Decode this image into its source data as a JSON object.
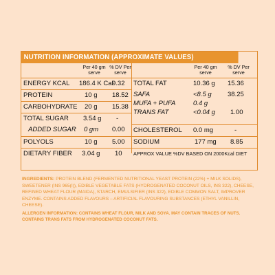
{
  "panel": {
    "title": "NUTRITION INFORMATION (APPROXIMATE VALUES)",
    "left_header": {
      "per_line1": "Per 40 gm",
      "per_line2": "serve",
      "dv_line1": "% DV Per",
      "dv_line2": "serve"
    },
    "right_header": {
      "per_line1": "Per 40 gm",
      "per_line2": "serve",
      "dv_line1": "% DV Per",
      "dv_line2": "serve"
    },
    "left_rows": [
      {
        "label": "ENERGY KCAL",
        "value": "186.4 K Cal",
        "dv": "9.32"
      },
      {
        "label": "PROTEIN",
        "value": "10 g",
        "dv": "18.52"
      },
      {
        "label": "CARBOHYDRATE",
        "value": "20 g",
        "dv": "15.38"
      },
      {
        "label": "TOTAL SUGAR",
        "value": "3.54 g",
        "dv": "-"
      },
      {
        "label": "ADDED SUGAR",
        "value": "0 gm",
        "dv": "0.00"
      },
      {
        "label": "POLYOLS",
        "value": "10 g",
        "dv": "5.00"
      },
      {
        "label": "DIETARY FIBER",
        "value": "3.04 g",
        "dv": "10"
      }
    ],
    "right_rows": [
      {
        "label": "TOTAL FAT",
        "value": "10.36 g",
        "dv": "15.36"
      },
      {
        "label": "SAFA",
        "value": "<8.5 g",
        "dv": "38.25"
      },
      {
        "label": "MUFA + PUFA",
        "value": "0.4 g",
        "dv": ""
      },
      {
        "label": "TRANS FAT",
        "value": "<0.04 g",
        "dv": "1.00"
      },
      {
        "label": "CHOLESTEROL",
        "value": "0.0 mg",
        "dv": "-"
      },
      {
        "label": "SODIUM",
        "value": "177 mg",
        "dv": "8.85"
      }
    ],
    "footnote": "APPROX VALUE %DV BASED ON 2000Kcal DIET"
  },
  "ingredients": {
    "heading": "INGREDIENTS:",
    "text": "PROTEIN BLEND (FERMENTED NUTRITIONAL YEAST PROTEIN (22%) + MILK SOLIDS), SWEETENER (INS 965(I)), EDIBLE VEGETABLE FATS (HYDROGENATED COCONUT OILS, INS 322), CHEESE, REFINED WHEAT FLOUR (MAIDA), STARCH, EMULSIFIER (INS 322), EDIBLE COMMON SALT, IMPROVER ENZYME. CONTAINS ADDED FLAVOURS – ARTIFICIAL FLAVOURING SUBSTANCES (ETHYL VANILLIN, CHEESE)."
  },
  "allergen": {
    "text": "ALLERGEN INFORMATION: CONTAINS WHEAT FLOUR, MILK AND SOYA. MAY CONTAIN TRACES OF NUTS. CONTAINS TRANS FATS FROM HYDROGENATED COCONUT FATS."
  },
  "colors": {
    "background": "#fde3cc",
    "accent": "#e8942f"
  }
}
